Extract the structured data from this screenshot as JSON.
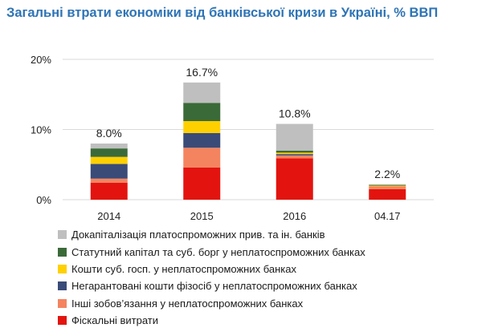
{
  "chart_data": {
    "type": "bar",
    "stacked": true,
    "title": "Загальні втрати економіки від банківської кризи в Україні, % ВВП",
    "categories": [
      "2014",
      "2015",
      "2016",
      "04.17"
    ],
    "ylim": [
      0,
      20
    ],
    "yticks": [
      "0%",
      "10%",
      "20%"
    ],
    "totals": [
      8.0,
      16.7,
      10.8,
      2.2
    ],
    "total_labels": [
      "8.0%",
      "16.7%",
      "10.8%",
      "2.2%"
    ],
    "grid": true,
    "legend_position": "bottom",
    "series": [
      {
        "name": "Фіскальні витрати",
        "color": "#e3140f",
        "values": [
          2.4,
          4.6,
          5.9,
          1.5
        ]
      },
      {
        "name": "Інші зобов’язання  у неплатоспроможних банках",
        "color": "#f4845f",
        "values": [
          0.6,
          2.8,
          0.4,
          0.4
        ]
      },
      {
        "name": "Негарантовані кошти фізосіб у неплатоспроможних банках",
        "color": "#3a4b78",
        "values": [
          2.1,
          2.1,
          0.2,
          0.0
        ]
      },
      {
        "name": "Кошти суб. госп. у неплатоспроможних банках",
        "color": "#ffd000",
        "values": [
          1.0,
          1.7,
          0.2,
          0.1
        ]
      },
      {
        "name": "Статутний капітал та суб. борг у неплатоспроможних банках",
        "color": "#3b6a39",
        "values": [
          1.2,
          2.6,
          0.3,
          0.1
        ]
      },
      {
        "name": "Докапіталізація платоспроможних прив. та ін. банків",
        "color": "#bfbfbf",
        "values": [
          0.7,
          2.9,
          3.8,
          0.1
        ]
      }
    ]
  }
}
